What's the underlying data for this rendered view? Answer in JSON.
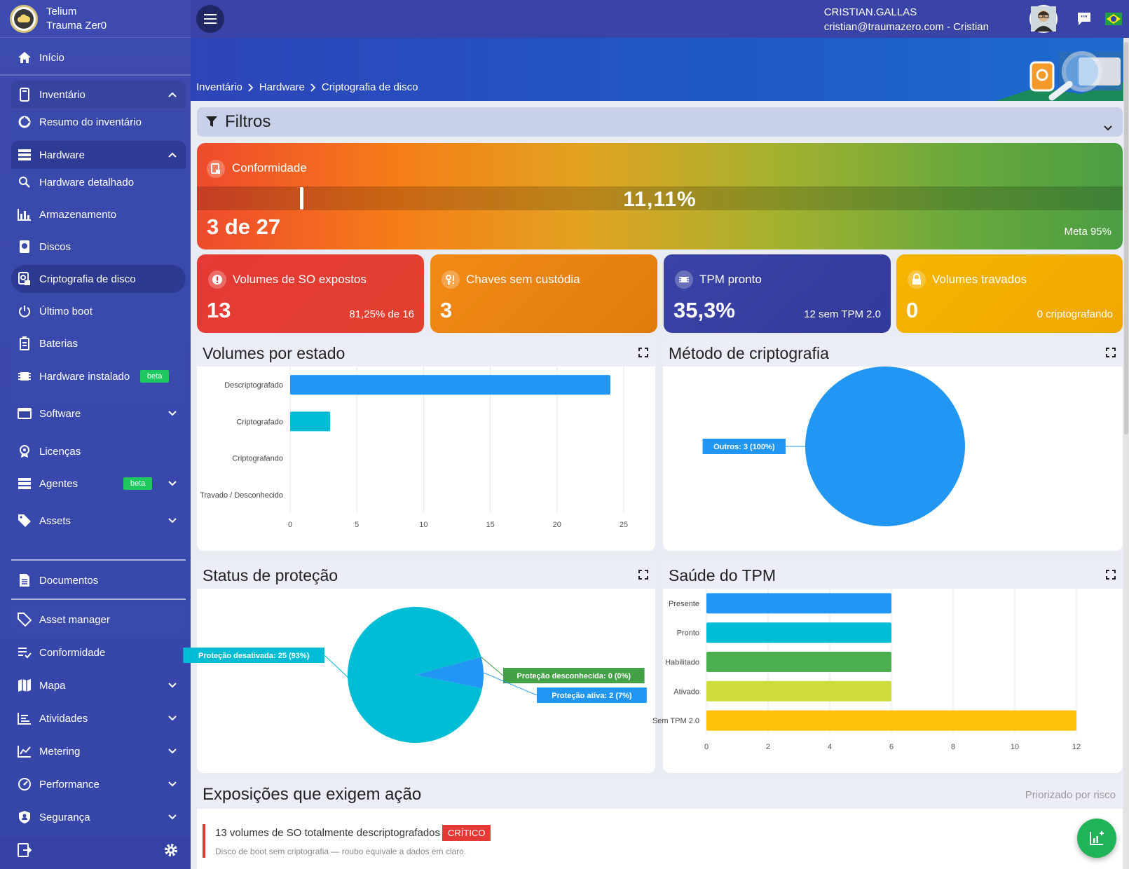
{
  "brand": {
    "line1": "Telium",
    "line2": "Trauma Zer0"
  },
  "user": {
    "name": "CRISTIAN.GALLAS",
    "email": "cristian@traumazero.com - Cristian"
  },
  "breadcrumb": [
    "Inventário",
    "Hardware",
    "Criptografia de disco"
  ],
  "nav": {
    "home": "Início",
    "inventory": "Inventário",
    "inventory_summary": "Resumo do inventário",
    "hardware": "Hardware",
    "hardware_detailed": "Hardware detalhado",
    "storage": "Armazenamento",
    "disks": "Discos",
    "disk_crypto": "Criptografia de disco",
    "last_boot": "Último boot",
    "batteries": "Baterias",
    "installed_hw": "Hardware instalado",
    "beta": "beta",
    "software": "Software",
    "licenses": "Licenças",
    "agents": "Agentes",
    "assets": "Assets",
    "documents": "Documentos",
    "asset_manager": "Asset manager",
    "compliance": "Conformidade",
    "map": "Mapa",
    "activities": "Atividades",
    "metering": "Metering",
    "performance": "Performance",
    "security": "Segurança"
  },
  "filters": {
    "label": "Filtros"
  },
  "compliance": {
    "title": "Conformidade",
    "percent_label": "11,11%",
    "count": "3 de 27",
    "goal": "Meta 95%",
    "value": 0.1111
  },
  "kpis": [
    {
      "title": "Volumes de SO expostos",
      "value": "13",
      "sub": "81,25% de 16",
      "color": "#e53935"
    },
    {
      "title": "Chaves sem custódia",
      "value": "3",
      "sub": "",
      "color": "#f08a12"
    },
    {
      "title": "TPM pronto",
      "value": "35,3%",
      "sub": "12 sem TPM 2.0",
      "color": "#3a43a6"
    },
    {
      "title": "Volumes travados",
      "value": "0",
      "sub": "0 criptografando",
      "color": "#f6b500"
    }
  ],
  "panels": {
    "volumes_by_state": "Volumes por estado",
    "crypto_method": "Método de criptografia",
    "protection_status": "Status de proteção",
    "tpm_health": "Saúde do TPM"
  },
  "chart_data": [
    {
      "type": "bar",
      "title": "Volumes por estado",
      "orientation": "horizontal",
      "categories": [
        "Descriptografado",
        "Criptografado",
        "Criptografando",
        "Travado / Desconhecido"
      ],
      "values": [
        24,
        3,
        0,
        0
      ],
      "colors": [
        "#2196f3",
        "#00bcd4",
        "#00bcd4",
        "#00bcd4"
      ],
      "xlim": [
        0,
        25
      ],
      "xticks": [
        0,
        5,
        10,
        15,
        20,
        25
      ],
      "grid": true
    },
    {
      "type": "pie",
      "title": "Método de criptografia",
      "slices": [
        {
          "label": "Outros: 3 (100%)",
          "value": 3,
          "color": "#2196f3"
        }
      ]
    },
    {
      "type": "pie",
      "title": "Status de proteção",
      "slices": [
        {
          "label": "Proteção desativada: 25 (93%)",
          "value": 25,
          "color": "#00bcd4"
        },
        {
          "label": "Proteção desconhecida: 0 (0%)",
          "value": 0,
          "color": "#43a047"
        },
        {
          "label": "Proteção ativa: 2 (7%)",
          "value": 2,
          "color": "#2196f3"
        }
      ]
    },
    {
      "type": "bar",
      "title": "Saúde do TPM",
      "orientation": "horizontal",
      "categories": [
        "Presente",
        "Pronto",
        "Habilitado",
        "Ativado",
        "Sem TPM 2.0"
      ],
      "values": [
        6,
        6,
        6,
        6,
        12
      ],
      "colors": [
        "#2196f3",
        "#00bcd4",
        "#4caf50",
        "#cddc39",
        "#ffc107"
      ],
      "xlim": [
        0,
        12
      ],
      "xticks": [
        0,
        2,
        4,
        6,
        8,
        10,
        12
      ],
      "grid": true
    }
  ],
  "exposures": {
    "title": "Exposições que exigem ação",
    "note": "Priorizado por risco",
    "items": [
      {
        "title": "13 volumes de SO totalmente descriptografados",
        "severity": "CRÍTICO",
        "desc": "Disco de boot sem criptografia — roubo equivale a dados em claro."
      }
    ]
  }
}
